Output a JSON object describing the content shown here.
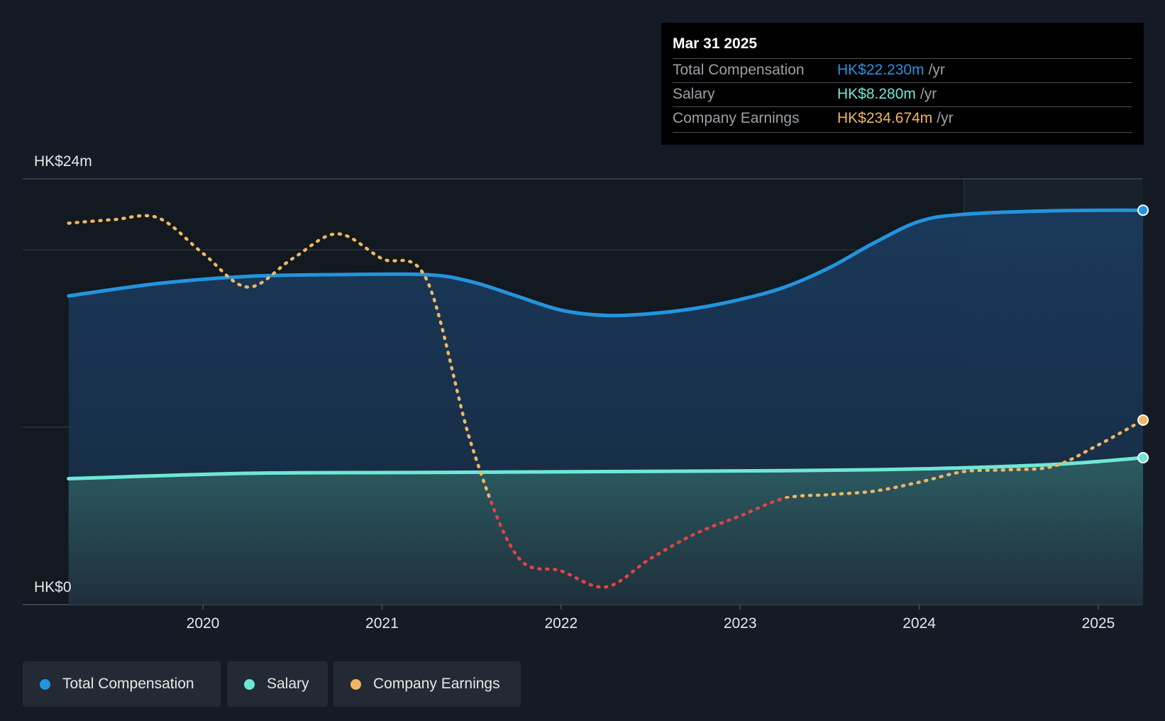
{
  "tooltip": {
    "date": "Mar 31 2025",
    "rows": [
      {
        "label": "Total Compensation",
        "value": "HK$22.230m",
        "unit": "/yr",
        "color": "#2394df"
      },
      {
        "label": "Salary",
        "value": "HK$8.280m",
        "unit": "/yr",
        "color": "#6ee8d6"
      },
      {
        "label": "Company Earnings",
        "value": "HK$234.674m",
        "unit": "/yr",
        "color": "#f0b661"
      }
    ]
  },
  "axis": {
    "y_top_label": "HK$24m",
    "y_bottom_label": "HK$0"
  },
  "legend": [
    {
      "label": "Total Compensation",
      "color": "#2394df"
    },
    {
      "label": "Salary",
      "color": "#6ee8d6"
    },
    {
      "label": "Company Earnings",
      "color": "#f0b661"
    }
  ],
  "colors": {
    "background": "#151b24",
    "total_compensation": "#2394df",
    "salary": "#6ee8d6",
    "earnings": "#f0b661",
    "earnings_negative": "#e84141"
  },
  "chart_data": {
    "type": "area",
    "x_label_ticks": [
      "2020",
      "2021",
      "2022",
      "2023",
      "2024",
      "2025"
    ],
    "ylim": [
      0,
      24
    ],
    "y_unit": "HK$m",
    "y_tick_labels": [
      "HK$0",
      "HK$24m"
    ],
    "grid": true,
    "legend_position": "bottom-left",
    "series": [
      {
        "name": "Total Compensation",
        "kind": "area",
        "x": [
          2019.25,
          2019.75,
          2020.25,
          2020.75,
          2021.25,
          2021.5,
          2021.75,
          2022.0,
          2022.25,
          2022.5,
          2022.75,
          2023.0,
          2023.25,
          2023.5,
          2023.75,
          2024.0,
          2024.25,
          2024.75,
          2025.25
        ],
        "values": [
          17.4,
          18.1,
          18.5,
          18.6,
          18.6,
          18.2,
          17.4,
          16.6,
          16.3,
          16.4,
          16.7,
          17.2,
          17.9,
          19.0,
          20.4,
          21.6,
          22.0,
          22.2,
          22.23
        ]
      },
      {
        "name": "Salary",
        "kind": "area",
        "x": [
          2019.25,
          2020.25,
          2021.25,
          2022.25,
          2023.25,
          2024.0,
          2024.75,
          2025.25
        ],
        "values": [
          7.1,
          7.4,
          7.45,
          7.5,
          7.55,
          7.65,
          7.9,
          8.28
        ]
      },
      {
        "name": "Company Earnings",
        "kind": "line",
        "style": "dotted",
        "x": [
          2019.25,
          2019.5,
          2019.75,
          2020.0,
          2020.25,
          2020.5,
          2020.75,
          2021.0,
          2021.25,
          2021.5,
          2021.75,
          2022.0,
          2022.25,
          2022.5,
          2022.75,
          2023.0,
          2023.25,
          2023.5,
          2023.75,
          2024.0,
          2024.25,
          2024.5,
          2024.75,
          2025.0,
          2025.25
        ],
        "values": [
          21.5,
          21.7,
          21.8,
          19.8,
          17.9,
          19.5,
          20.9,
          19.5,
          18.3,
          9.0,
          2.8,
          1.9,
          1.0,
          2.6,
          4.0,
          5.0,
          6.0,
          6.2,
          6.4,
          6.9,
          7.5,
          7.6,
          7.8,
          9.0,
          10.4
        ]
      }
    ],
    "highlight_x": 2025.25,
    "forecast_shade_start": 2024.25
  }
}
